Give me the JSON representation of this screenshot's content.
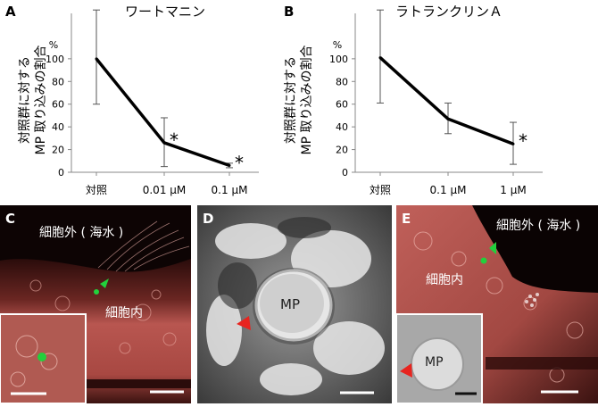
{
  "panels": {
    "A": {
      "letter": "A",
      "title": "ワートマニン"
    },
    "B": {
      "letter": "B",
      "title": "ラトランクリンＡ"
    },
    "C": {
      "letter": "C",
      "label_outside": "細胞外 ( 海水 )",
      "label_inside": "細胞内"
    },
    "D": {
      "letter": "D",
      "label_mp": "MP"
    },
    "E": {
      "letter": "E",
      "label_outside": "細胞外 ( 海水 )",
      "label_inside": "細胞内",
      "label_mp": "MP"
    }
  },
  "chart_data": [
    {
      "type": "line",
      "title": "ワートマニン",
      "ylabel_lines": [
        "対照群に対する",
        "MP 取り込みの割合"
      ],
      "yunit": "%",
      "categories": [
        "対照",
        "0.01 µM",
        "0.1 µM"
      ],
      "values": [
        100,
        26,
        6
      ],
      "err_low": [
        60,
        5,
        4
      ],
      "err_high": [
        143,
        48,
        8
      ],
      "significance": [
        "",
        "*",
        "*"
      ],
      "ylim": [
        0,
        140
      ],
      "yticks": [
        0,
        20,
        40,
        60,
        80,
        100
      ]
    },
    {
      "type": "line",
      "title": "ラトランクリンＡ",
      "ylabel_lines": [
        "対照群に対する",
        "MP 取り込みの割合"
      ],
      "yunit": "%",
      "categories": [
        "対照",
        "0.1 µM",
        "1 µM"
      ],
      "values": [
        101,
        47,
        25
      ],
      "err_low": [
        61,
        34,
        7
      ],
      "err_high": [
        143,
        61,
        44
      ],
      "significance": [
        "",
        "",
        "*"
      ],
      "ylim": [
        0,
        140
      ],
      "yticks": [
        0,
        20,
        40,
        60,
        80,
        100
      ]
    }
  ],
  "colors": {
    "marker_green": "#22d03c",
    "arrow_red": "#e8241f",
    "tissue": "#b85650"
  }
}
